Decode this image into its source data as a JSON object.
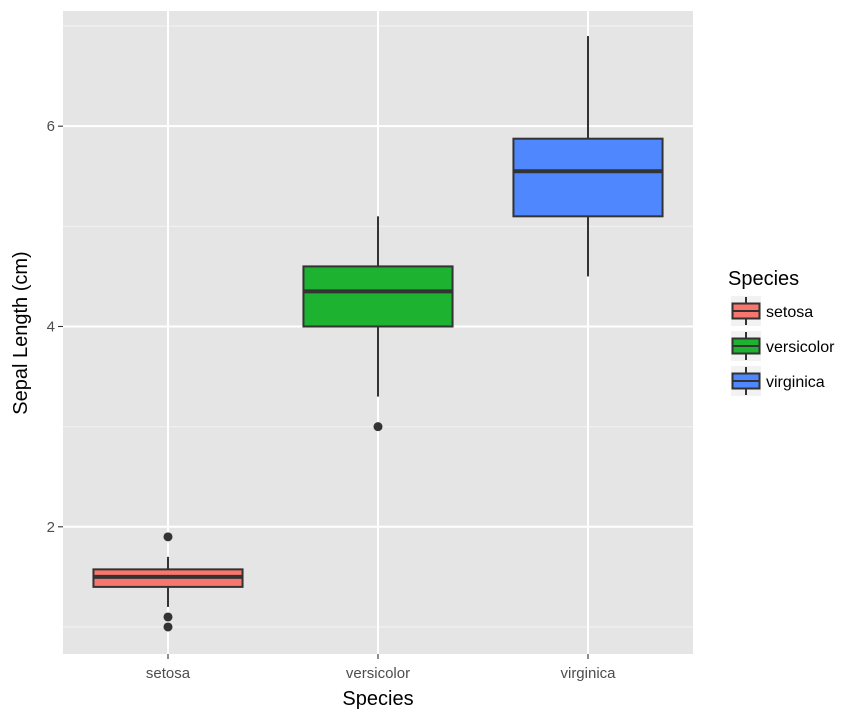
{
  "chart_data": {
    "type": "boxplot",
    "xlabel": "Species",
    "ylabel": "Sepal Length (cm)",
    "ylim": [
      0.73,
      7.15
    ],
    "yticks": [
      2,
      4,
      6
    ],
    "grid": true,
    "legend": {
      "title": "Species",
      "position": "right",
      "entries": [
        "setosa",
        "versicolor",
        "virginica"
      ]
    },
    "categories": [
      "setosa",
      "versicolor",
      "virginica"
    ],
    "series": [
      {
        "name": "setosa",
        "color": "#F8766D",
        "min": 1.2,
        "q1": 1.4,
        "median": 1.5,
        "q3": 1.575,
        "max": 1.7,
        "outliers": [
          1.9,
          1.1,
          1.0
        ]
      },
      {
        "name": "versicolor",
        "color": "#1DB22F",
        "min": 3.3,
        "q1": 4.0,
        "median": 4.35,
        "q3": 4.6,
        "max": 5.1,
        "outliers": [
          3.0
        ]
      },
      {
        "name": "virginica",
        "color": "#4F87FF",
        "min": 4.5,
        "q1": 5.1,
        "median": 5.55,
        "q3": 5.875,
        "max": 6.9,
        "outliers": []
      }
    ]
  }
}
